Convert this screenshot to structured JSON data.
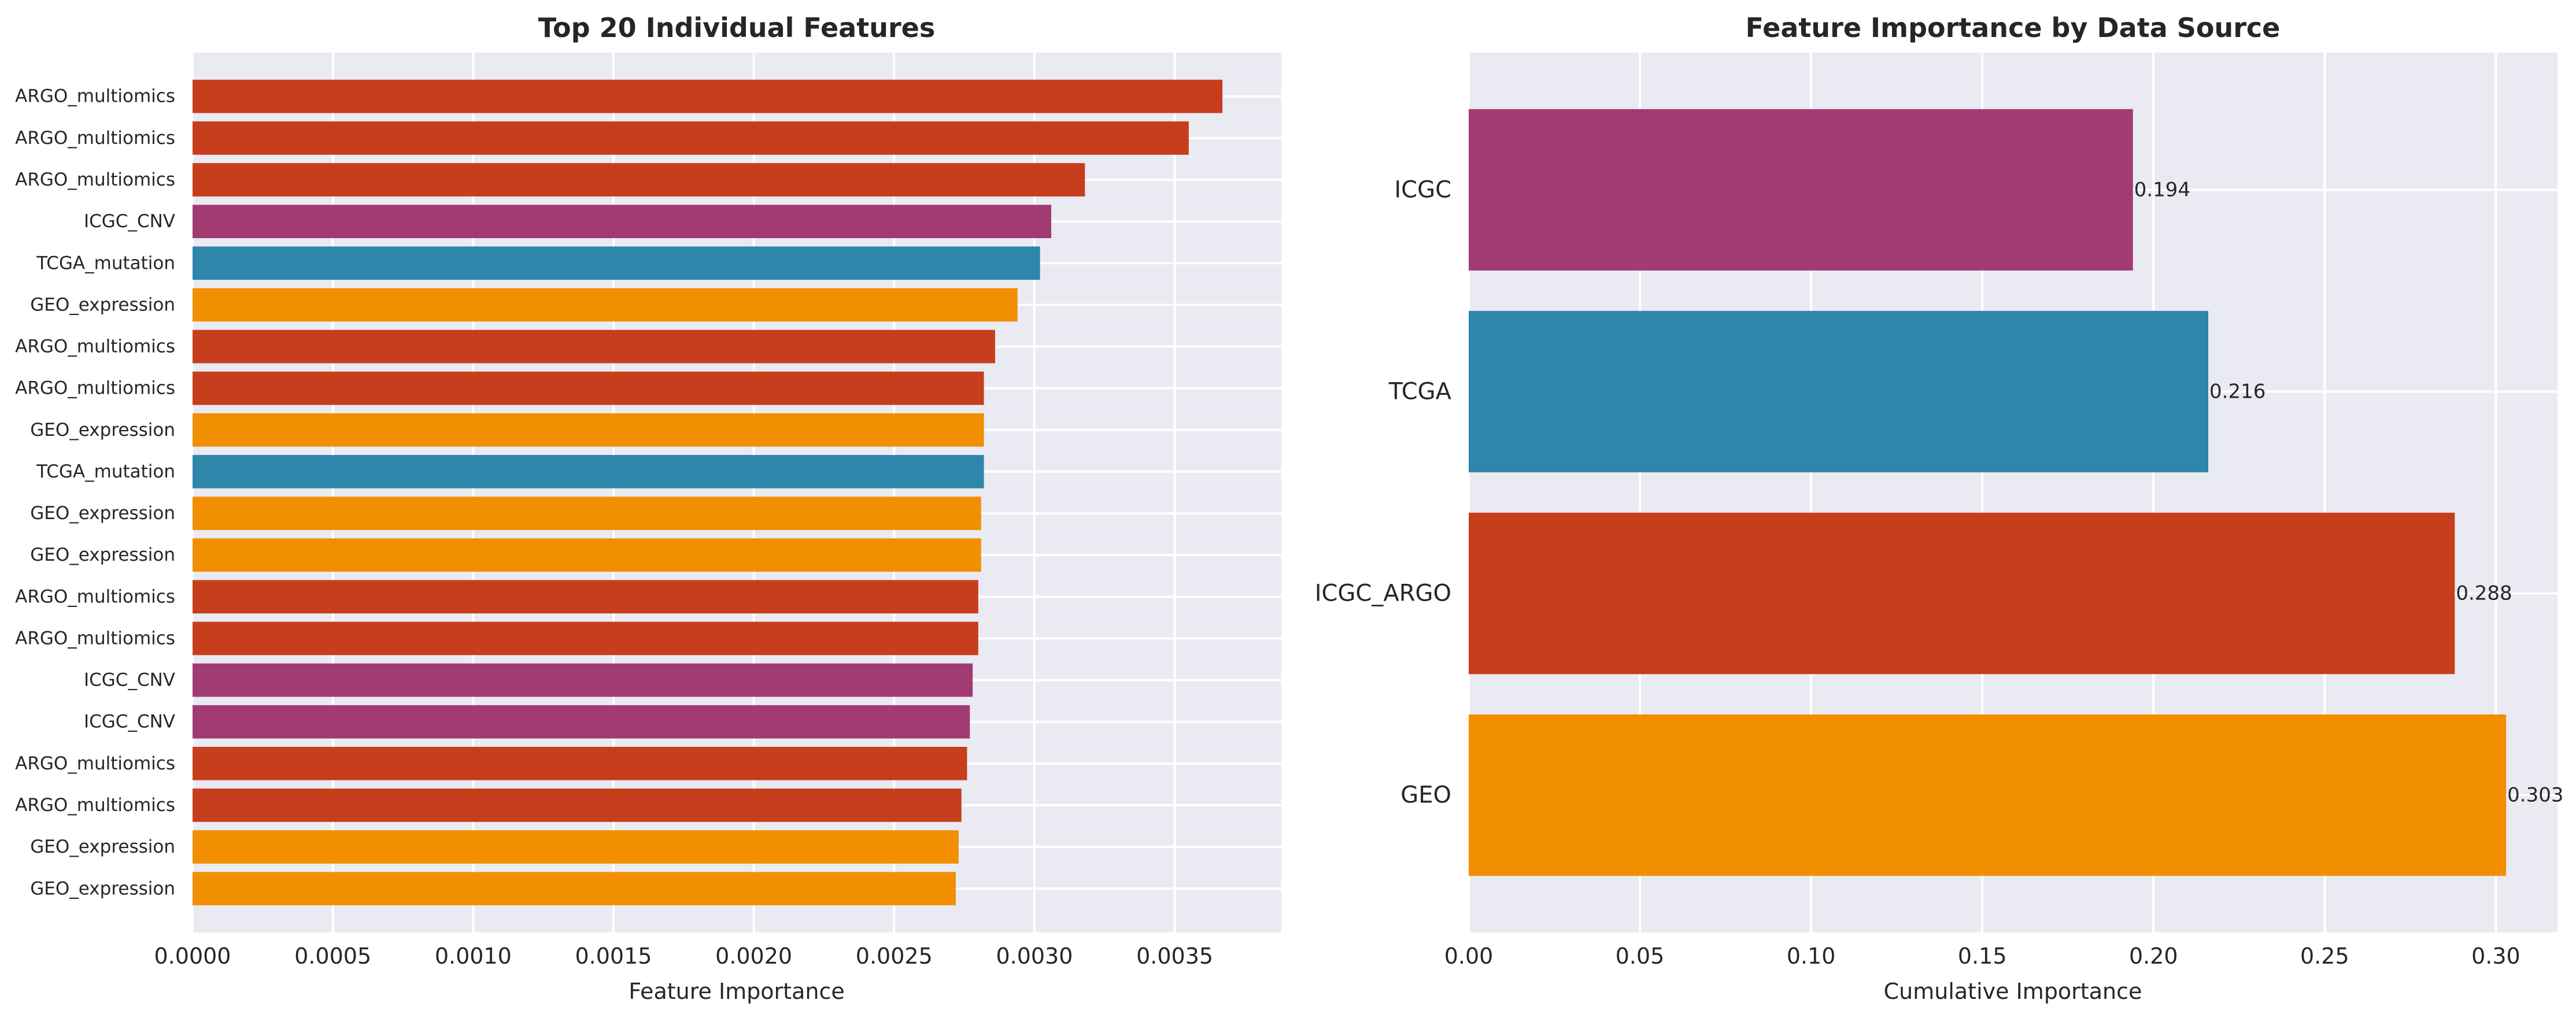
{
  "source_colors": {
    "ARGO": "#c73e1d",
    "ICGC": "#a23b72",
    "TCGA": "#2e86ab",
    "GEO": "#f18f01"
  },
  "chart_data": [
    {
      "type": "bar",
      "orientation": "horizontal",
      "title": "Top 20 Individual Features",
      "xlabel": "Feature Importance",
      "ylabel": "",
      "xlim": [
        0,
        0.00388
      ],
      "xticks": [
        "0.0000",
        "0.0005",
        "0.0010",
        "0.0015",
        "0.0020",
        "0.0025",
        "0.0030",
        "0.0035"
      ],
      "grid": true,
      "categories": [
        "ARGO_multiomics",
        "ARGO_multiomics",
        "ARGO_multiomics",
        "ICGC_CNV",
        "TCGA_mutation",
        "GEO_expression",
        "ARGO_multiomics",
        "ARGO_multiomics",
        "GEO_expression",
        "TCGA_mutation",
        "GEO_expression",
        "GEO_expression",
        "ARGO_multiomics",
        "ARGO_multiomics",
        "ICGC_CNV",
        "ICGC_CNV",
        "ARGO_multiomics",
        "ARGO_multiomics",
        "GEO_expression",
        "GEO_expression"
      ],
      "values": [
        0.00367,
        0.00355,
        0.00318,
        0.00306,
        0.00302,
        0.00294,
        0.00286,
        0.00282,
        0.00282,
        0.00282,
        0.00281,
        0.00281,
        0.0028,
        0.0028,
        0.00278,
        0.00277,
        0.00276,
        0.00274,
        0.00273,
        0.00272
      ],
      "bar_colors": [
        "#c73e1d",
        "#c73e1d",
        "#c73e1d",
        "#a23b72",
        "#2e86ab",
        "#f18f01",
        "#c73e1d",
        "#c73e1d",
        "#f18f01",
        "#2e86ab",
        "#f18f01",
        "#f18f01",
        "#c73e1d",
        "#c73e1d",
        "#a23b72",
        "#a23b72",
        "#c73e1d",
        "#c73e1d",
        "#f18f01",
        "#f18f01"
      ]
    },
    {
      "type": "bar",
      "orientation": "horizontal",
      "title": "Feature Importance by Data Source",
      "xlabel": "Cumulative Importance",
      "ylabel": "",
      "xlim": [
        0,
        0.318
      ],
      "xticks": [
        "0.00",
        "0.05",
        "0.10",
        "0.15",
        "0.20",
        "0.25",
        "0.30"
      ],
      "grid": true,
      "categories": [
        "ICGC",
        "TCGA",
        "ICGC_ARGO",
        "GEO"
      ],
      "values": [
        0.194,
        0.216,
        0.288,
        0.303
      ],
      "value_labels": [
        "0.194",
        "0.216",
        "0.288",
        "0.303"
      ],
      "bar_colors": [
        "#a23b72",
        "#2e86ab",
        "#c73e1d",
        "#f18f01"
      ]
    }
  ]
}
